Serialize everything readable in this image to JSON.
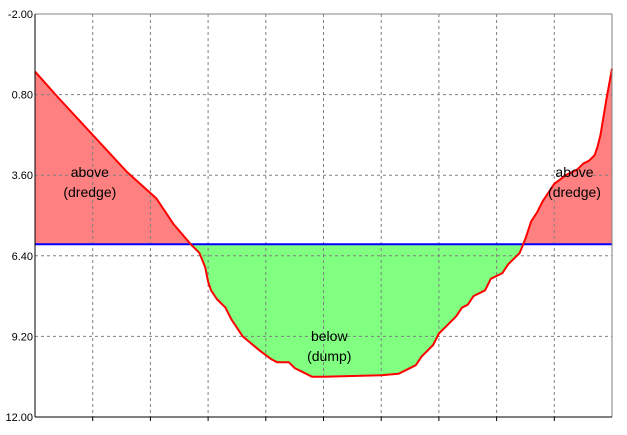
{
  "chart_data": {
    "type": "area",
    "title": "",
    "xlabel": "",
    "ylabel": "",
    "y_axis": {
      "inverted": true,
      "ylim": [
        -2.0,
        12.0
      ],
      "ticks": [
        -2.0,
        0.8,
        3.6,
        6.4,
        9.2,
        12.0
      ],
      "tick_labels": [
        "-2.00",
        "0.80",
        "3.60",
        "6.40",
        "9.20",
        "12.00"
      ]
    },
    "x_axis": {
      "xlim": [
        0,
        100
      ],
      "gridlines": [
        10,
        20,
        30,
        40,
        50,
        60,
        70,
        80,
        90
      ],
      "tick_labels": []
    },
    "grid": true,
    "reference_level": 6.0,
    "profile": {
      "x": [
        0,
        4,
        10,
        16,
        21,
        24,
        27,
        28.5,
        29.5,
        30,
        30.5,
        31.5,
        33,
        34,
        36,
        39,
        41,
        42,
        44,
        45,
        47,
        48,
        50,
        60,
        63,
        66,
        67,
        69,
        70,
        71,
        73,
        74,
        75,
        76,
        78,
        79,
        81,
        82,
        83,
        83.5,
        84,
        85,
        86,
        87,
        88,
        89,
        90,
        92,
        94,
        95,
        96,
        97,
        97.5,
        98,
        99,
        100
      ],
      "y": [
        0.0,
        0.9,
        2.2,
        3.5,
        4.4,
        5.3,
        6.0,
        6.3,
        6.8,
        7.3,
        7.6,
        7.9,
        8.2,
        8.6,
        9.2,
        9.7,
        10.0,
        10.1,
        10.1,
        10.3,
        10.5,
        10.6,
        10.6,
        10.55,
        10.5,
        10.2,
        9.9,
        9.5,
        9.1,
        8.9,
        8.5,
        8.2,
        8.1,
        7.8,
        7.6,
        7.2,
        7.0,
        6.7,
        6.5,
        6.4,
        6.3,
        5.8,
        5.2,
        4.9,
        4.5,
        4.2,
        3.9,
        3.6,
        3.4,
        3.2,
        3.1,
        2.9,
        2.6,
        2.2,
        1.0,
        -0.1
      ]
    },
    "series": [
      {
        "name": "above (dredge)",
        "color": "#ff8080"
      },
      {
        "name": "below (dump)",
        "color": "#80ff80"
      }
    ],
    "colors": {
      "profile_line": "#ff0000",
      "reference_line": "#0000ff",
      "grid": "#808080"
    },
    "annotations": [
      {
        "text_lines": [
          "above",
          "(dredge)"
        ],
        "x": 9.5,
        "y": 3.8
      },
      {
        "text_lines": [
          "above",
          "(dredge)"
        ],
        "x": 93.5,
        "y": 3.8
      },
      {
        "text_lines": [
          "below",
          "(dump)"
        ],
        "x": 51,
        "y": 9.5
      }
    ]
  }
}
